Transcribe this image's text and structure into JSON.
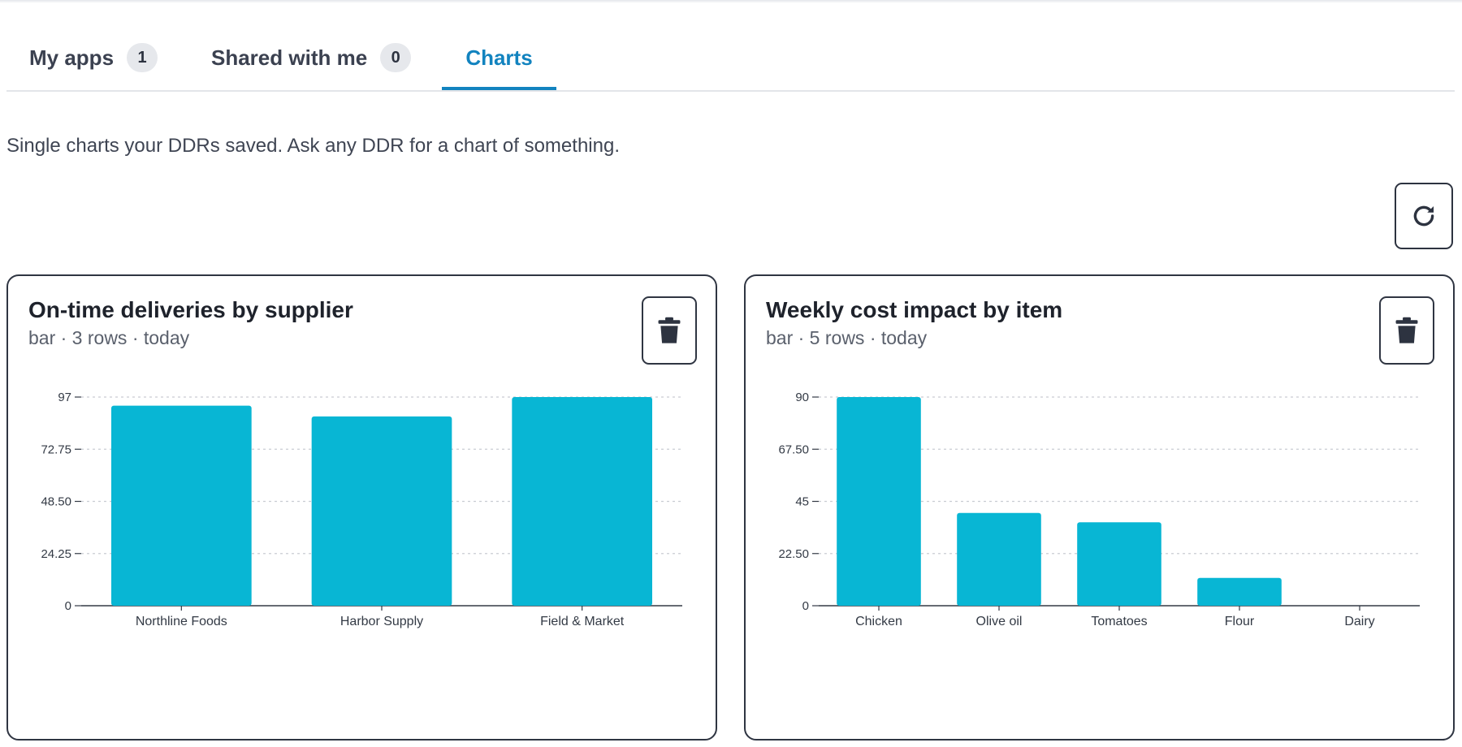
{
  "tabs": [
    {
      "label": "My apps",
      "count": "1"
    },
    {
      "label": "Shared with me",
      "count": "0"
    },
    {
      "label": "Charts"
    }
  ],
  "description": "Single charts your DDRs saved. Ask any DDR for a chart of something.",
  "icons": {
    "refresh": "refresh-icon",
    "delete": "trash-icon"
  },
  "colors": {
    "accent": "#1283bf",
    "bar": "#08b6d4",
    "border": "#2f3542"
  },
  "cards": [
    {
      "title": "On-time deliveries by supplier",
      "subtitle": "bar · 3 rows · today"
    },
    {
      "title": "Weekly cost impact by item",
      "subtitle": "bar · 5 rows · today"
    }
  ],
  "chart_data": [
    {
      "type": "bar",
      "categories": [
        "Northline Foods",
        "Harbor Supply",
        "Field & Market"
      ],
      "values": [
        93,
        88,
        97
      ],
      "yticks": [
        "0",
        "24.25",
        "48.50",
        "72.75",
        "97"
      ],
      "ylim": [
        0,
        97
      ],
      "grid": true,
      "legend": "none"
    },
    {
      "type": "bar",
      "categories": [
        "Chicken",
        "Olive oil",
        "Tomatoes",
        "Flour",
        "Dairy"
      ],
      "values": [
        90,
        40,
        36,
        12,
        0
      ],
      "yticks": [
        "0",
        "22.50",
        "45",
        "67.50",
        "90"
      ],
      "ylim": [
        0,
        90
      ],
      "grid": true,
      "legend": "none"
    }
  ]
}
